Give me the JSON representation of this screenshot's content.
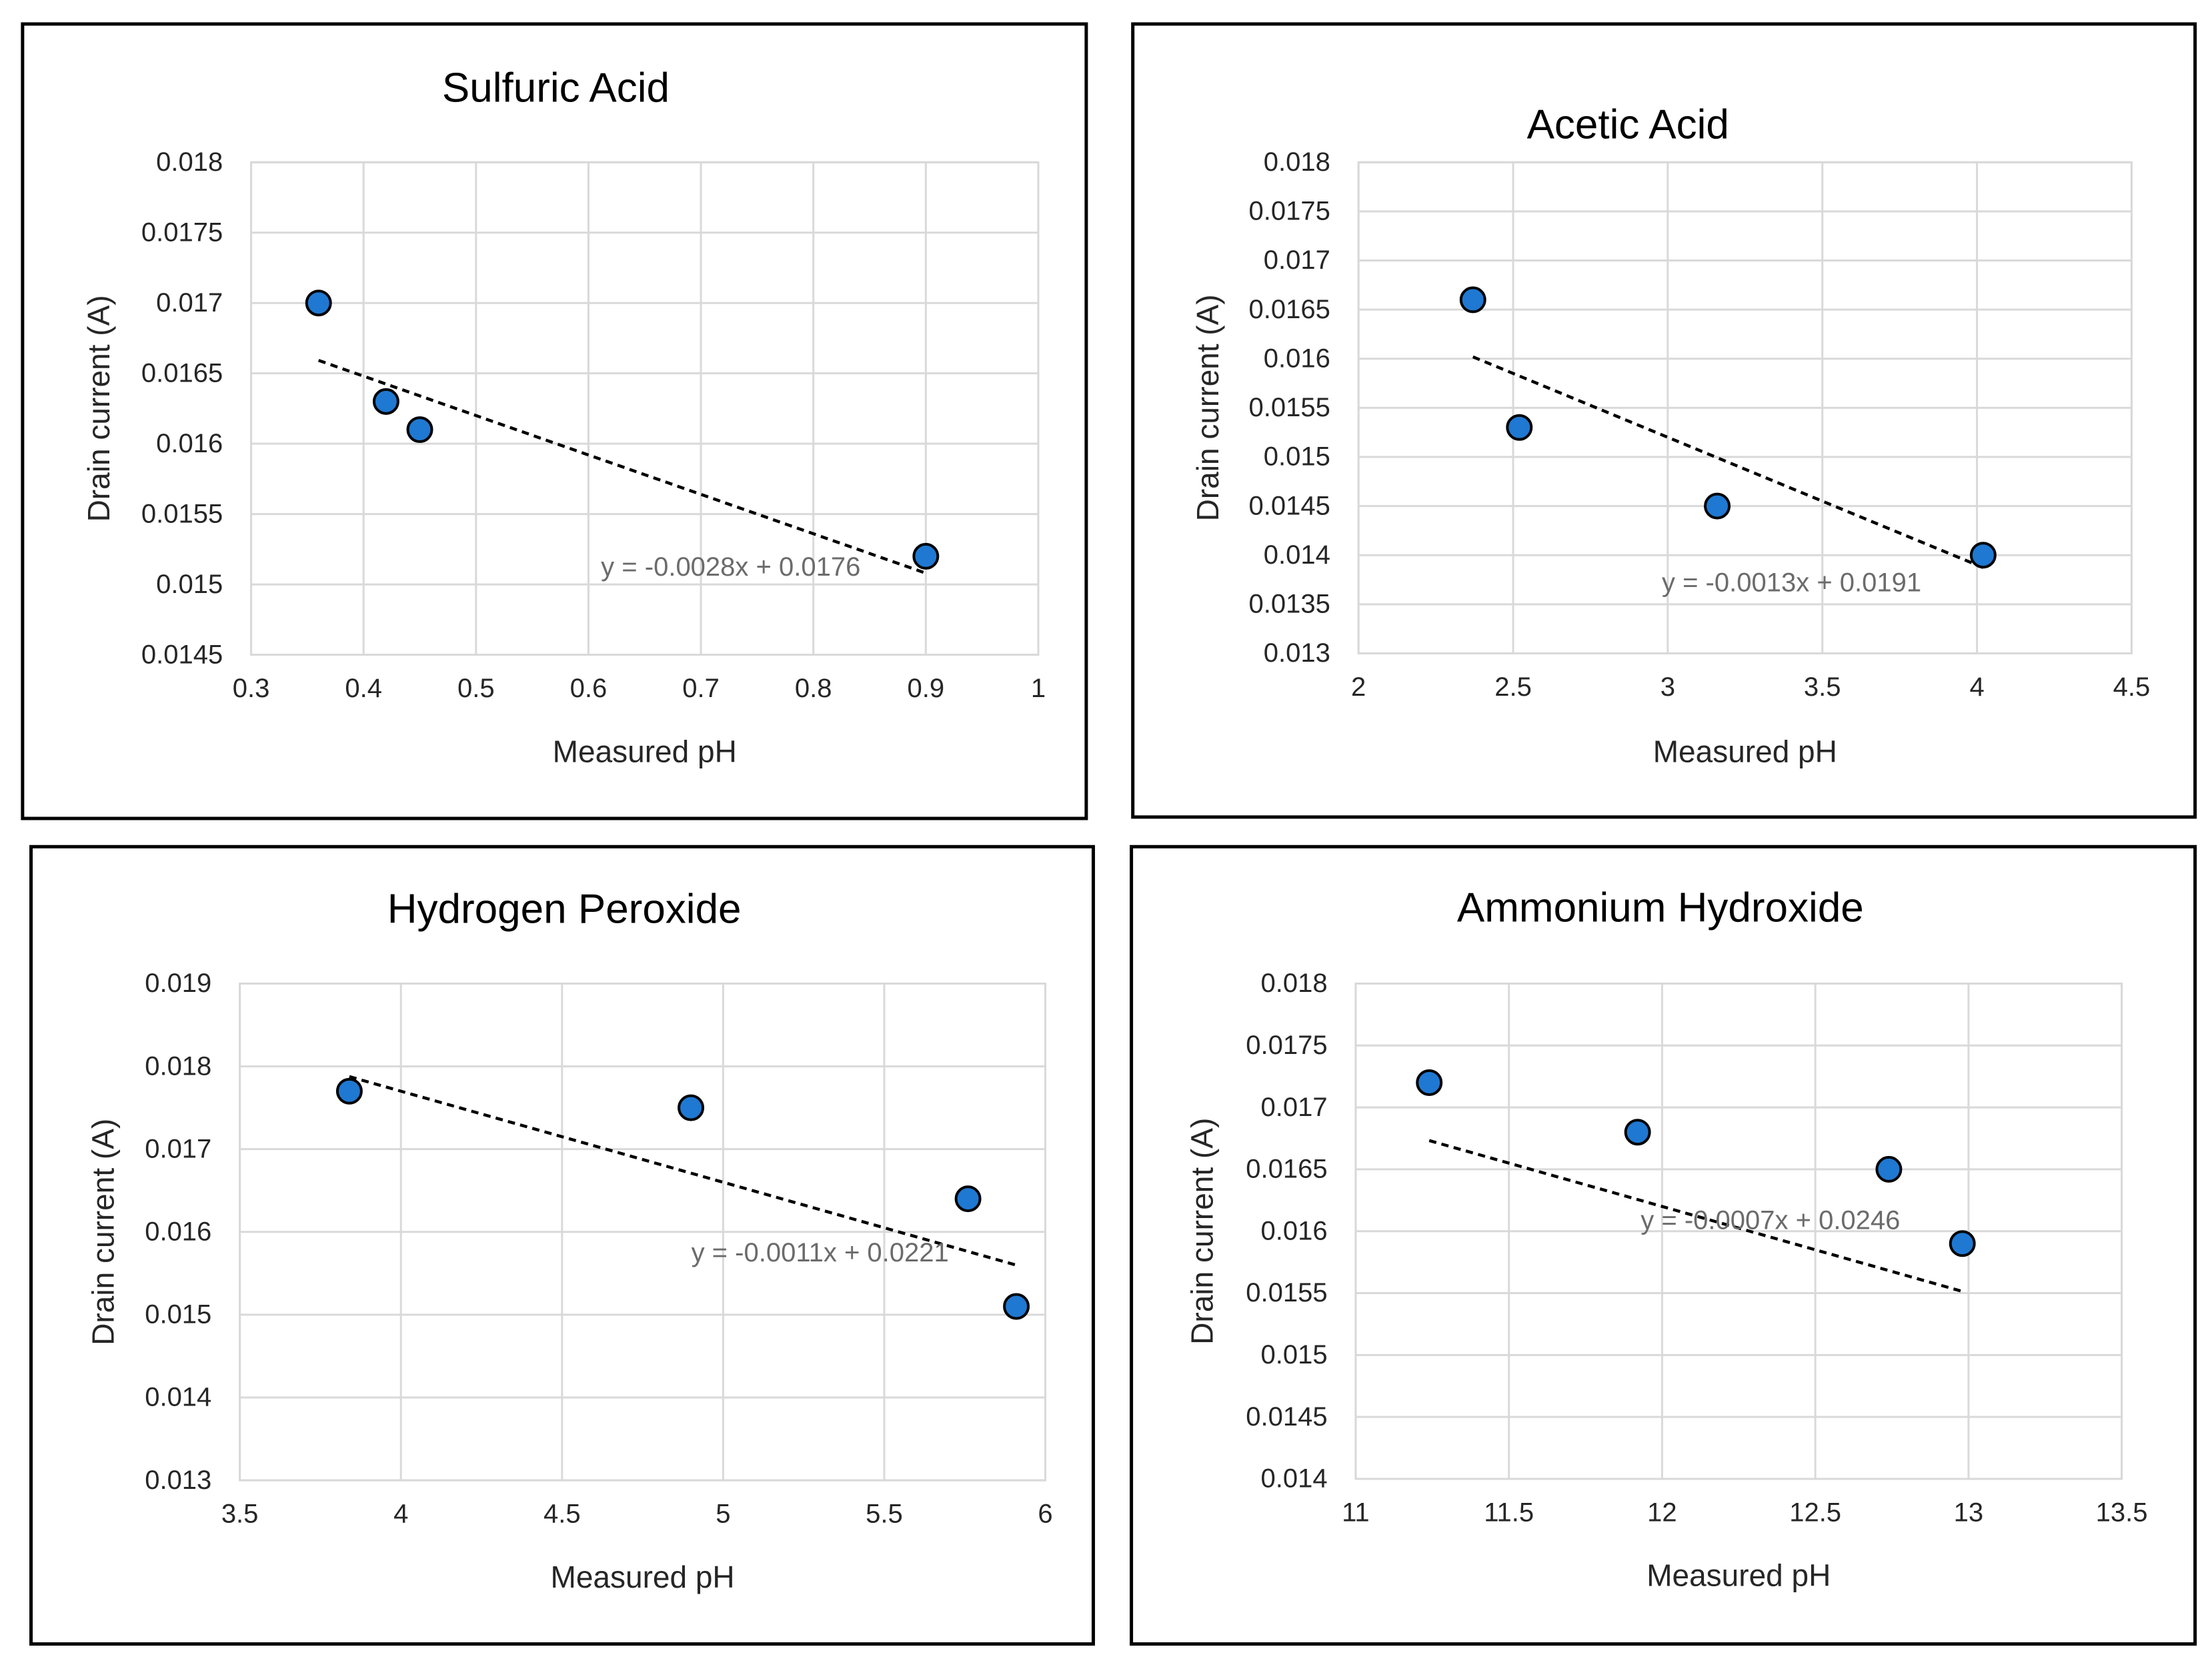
{
  "chart_data": [
    {
      "type": "scatter",
      "title": "Sulfuric Acid",
      "xlabel": "Measured pH",
      "ylabel": "Drain current (A)",
      "xlim": [
        0.3,
        1
      ],
      "ylim": [
        0.0145,
        0.018
      ],
      "x_ticks": [
        "0.3",
        "0.4",
        "0.5",
        "0.6",
        "0.7",
        "0.8",
        "0.9",
        "1"
      ],
      "y_ticks": [
        "0.018",
        "0.0175",
        "0.017",
        "0.0165",
        "0.016",
        "0.0155",
        "0.015",
        "0.0145"
      ],
      "grid": true,
      "points": [
        {
          "x": 0.36,
          "y": 0.017
        },
        {
          "x": 0.42,
          "y": 0.0163
        },
        {
          "x": 0.45,
          "y": 0.0161
        },
        {
          "x": 0.9,
          "y": 0.0152
        }
      ],
      "trendline": {
        "type": "linear",
        "slope": -0.0028,
        "intercept": 0.0176,
        "x_range": [
          0.36,
          0.9
        ],
        "equation": "y = -0.0028x + 0.0176"
      }
    },
    {
      "type": "scatter",
      "title": "Acetic Acid",
      "xlabel": "Measured pH",
      "ylabel": "Drain current (A)",
      "xlim": [
        2,
        4.5
      ],
      "ylim": [
        0.013,
        0.018
      ],
      "x_ticks": [
        "2",
        "2.5",
        "3",
        "3.5",
        "4",
        "4.5"
      ],
      "y_ticks": [
        "0.018",
        "0.0175",
        "0.017",
        "0.0165",
        "0.016",
        "0.0155",
        "0.015",
        "0.0145",
        "0.014",
        "0.0135",
        "0.013"
      ],
      "grid": true,
      "points": [
        {
          "x": 2.37,
          "y": 0.0166
        },
        {
          "x": 2.52,
          "y": 0.0153
        },
        {
          "x": 3.16,
          "y": 0.0145
        },
        {
          "x": 4.02,
          "y": 0.014
        }
      ],
      "trendline": {
        "type": "linear",
        "slope": -0.0013,
        "intercept": 0.0191,
        "x_range": [
          2.37,
          4.02
        ],
        "equation": "y = -0.0013x + 0.0191"
      }
    },
    {
      "type": "scatter",
      "title": "Hydrogen Peroxide",
      "xlabel": "Measured pH",
      "ylabel": "Drain current (A)",
      "xlim": [
        3.5,
        6
      ],
      "ylim": [
        0.013,
        0.019
      ],
      "x_ticks": [
        "3.5",
        "4",
        "4.5",
        "5",
        "5.5",
        "6"
      ],
      "y_ticks": [
        "0.019",
        "0.018",
        "0.017",
        "0.016",
        "0.015",
        "0.014",
        "0.013"
      ],
      "grid": true,
      "points": [
        {
          "x": 3.84,
          "y": 0.0177
        },
        {
          "x": 4.9,
          "y": 0.0175
        },
        {
          "x": 5.76,
          "y": 0.0164
        },
        {
          "x": 5.91,
          "y": 0.0151
        }
      ],
      "trendline": {
        "type": "linear",
        "slope": -0.0011,
        "intercept": 0.0221,
        "x_range": [
          3.84,
          5.91
        ],
        "equation": "y = -0.0011x + 0.0221"
      }
    },
    {
      "type": "scatter",
      "title": "Ammonium Hydroxide",
      "xlabel": "Measured pH",
      "ylabel": "Drain current (A)",
      "xlim": [
        11,
        13.5
      ],
      "ylim": [
        0.014,
        0.018
      ],
      "x_ticks": [
        "11",
        "11.5",
        "12",
        "12.5",
        "13",
        "13.5"
      ],
      "y_ticks": [
        "0.018",
        "0.0175",
        "0.017",
        "0.0165",
        "0.016",
        "0.0155",
        "0.015",
        "0.0145",
        "0.014"
      ],
      "grid": true,
      "points": [
        {
          "x": 11.24,
          "y": 0.0172
        },
        {
          "x": 11.92,
          "y": 0.0168
        },
        {
          "x": 12.74,
          "y": 0.0165
        },
        {
          "x": 12.98,
          "y": 0.0159
        }
      ],
      "trendline": {
        "type": "linear",
        "slope": -0.0007,
        "intercept": 0.0246,
        "x_range": [
          11.24,
          12.98
        ],
        "equation": "y = -0.0007x + 0.0246"
      }
    }
  ]
}
